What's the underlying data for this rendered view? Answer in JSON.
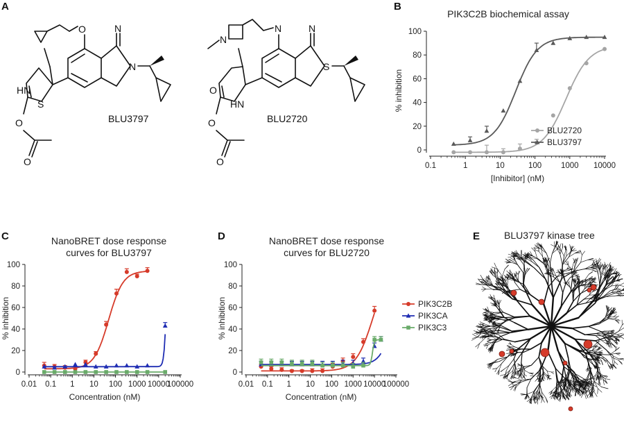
{
  "panels": {
    "a": "A",
    "b": "B",
    "c": "C",
    "d": "D",
    "e": "E"
  },
  "molecules": {
    "left_name": "BLU3797",
    "right_name": "BLU2720",
    "atoms": [
      "O",
      "N",
      "N",
      "S",
      "HN",
      "O",
      "O",
      "N",
      "N",
      "N",
      "S",
      "HN",
      "O",
      "O",
      "O"
    ]
  },
  "kinase_tree": {
    "title": "BLU3797 kinase tree",
    "colors": {
      "branch": "#111111",
      "hit": "#d63b2a"
    }
  },
  "chart_data": [
    {
      "id": "B",
      "type": "scatter",
      "title": "PIK3C2B biochemical assay",
      "xlabel": "[Inhibitor] (nM)",
      "ylabel": "% inhibition",
      "xscale": "log",
      "xlim": [
        0.1,
        10000
      ],
      "ylim": [
        0,
        100
      ],
      "xticks": [
        "0.1",
        "1",
        "10",
        "100",
        "1000",
        "10000"
      ],
      "yticks": [
        "0",
        "20",
        "40",
        "60",
        "80",
        "100"
      ],
      "legend": "bottom-right",
      "series": [
        {
          "name": "BLU2720",
          "color": "#a5a5a5",
          "marker": "circle",
          "x": [
            0.46,
            1.37,
            4.1,
            12.3,
            37,
            111,
            333,
            1000,
            3000,
            10000
          ],
          "y": [
            -2,
            -2,
            -2,
            -2,
            1,
            6,
            29,
            52,
            73,
            85
          ],
          "err": [
            0,
            0,
            6,
            3,
            4,
            3,
            0,
            0,
            0,
            0
          ],
          "fit": {
            "bottom": -2,
            "top": 88,
            "ec50": 780,
            "hill": 1.3
          }
        },
        {
          "name": "BLU3797",
          "color": "#595959",
          "marker": "triangle",
          "x": [
            0.46,
            1.37,
            4.1,
            12.3,
            37,
            111,
            333,
            1000,
            3000,
            10000
          ],
          "y": [
            5,
            8,
            16,
            33,
            58,
            84,
            90,
            94,
            95,
            95
          ],
          "err": [
            0,
            3,
            4,
            0,
            0,
            6,
            0,
            0,
            0,
            0
          ],
          "fit": {
            "bottom": 4,
            "top": 95,
            "ec50": 28,
            "hill": 1.4
          }
        }
      ]
    },
    {
      "id": "C",
      "type": "scatter",
      "title": "NanoBRET dose response curves for BLU3797",
      "title_lines": [
        "NanoBRET dose response",
        "curves for BLU3797"
      ],
      "xlabel": "Concentration (nM)",
      "ylabel": "% inhibition",
      "xscale": "log",
      "xlim": [
        0.01,
        100000
      ],
      "ylim": [
        0,
        100
      ],
      "xticks": [
        "0.01",
        "0.1",
        "1",
        "10",
        "100",
        "1000",
        "10000",
        "100000"
      ],
      "yticks": [
        "0",
        "20",
        "40",
        "60",
        "80",
        "100"
      ],
      "series": [
        {
          "name": "PIK3C2B",
          "color": "#d63b2a",
          "marker": "circle",
          "x": [
            0.05,
            0.15,
            0.46,
            1.37,
            4.1,
            12.3,
            37,
            111,
            333,
            1000,
            3000
          ],
          "y": [
            6,
            5,
            4,
            3,
            9,
            17,
            44,
            73,
            93,
            89,
            94
          ],
          "err": [
            3,
            2,
            2,
            2,
            2,
            2,
            3,
            4,
            3,
            2,
            3
          ],
          "fit": {
            "bottom": 3,
            "top": 94,
            "ec50": 48,
            "hill": 1.3
          }
        },
        {
          "name": "PIK3CA",
          "color": "#1f2db3",
          "marker": "triangle",
          "x": [
            0.05,
            0.15,
            0.46,
            1.37,
            4.1,
            12.3,
            37,
            111,
            333,
            1000,
            3000,
            20000
          ],
          "y": [
            5,
            4,
            5,
            7,
            7,
            5,
            5,
            6,
            6,
            5,
            6,
            43
          ],
          "err": [
            0,
            0,
            0,
            0,
            0,
            0,
            0,
            0,
            0,
            0,
            0,
            3
          ],
          "fit": {
            "bottom": 5,
            "top": 100,
            "ec50": 22000,
            "hill": 8
          }
        },
        {
          "name": "PIK3C3",
          "color": "#6aab6a",
          "marker": "square",
          "x": [
            0.05,
            0.15,
            0.46,
            1.37,
            4.1,
            12.3,
            37,
            111,
            333,
            1000,
            3000,
            20000
          ],
          "y": [
            0,
            0,
            0,
            0,
            0,
            0,
            0,
            0,
            0,
            0,
            0,
            0
          ],
          "err": [
            0,
            0,
            0,
            0,
            0,
            0,
            0,
            0,
            0,
            0,
            0,
            0
          ],
          "fit": {
            "bottom": 0,
            "top": 0,
            "ec50": 1000,
            "hill": 1
          }
        }
      ]
    },
    {
      "id": "D",
      "type": "scatter",
      "title": "NanoBRET dose response curves for BLU2720",
      "title_lines": [
        "NanoBRET dose response",
        "curves for BLU2720"
      ],
      "xlabel": "Concentration (nM)",
      "ylabel": "% inhibition",
      "xscale": "log",
      "xlim": [
        0.01,
        100000
      ],
      "ylim": [
        0,
        100
      ],
      "xticks": [
        "0.01",
        "0.1",
        "1",
        "10",
        "100",
        "1000",
        "10000",
        "100000"
      ],
      "yticks": [
        "0",
        "20",
        "40",
        "60",
        "80",
        "100"
      ],
      "legend": "right",
      "series": [
        {
          "name": "PIK3C2B",
          "color": "#d63b2a",
          "marker": "circle",
          "x": [
            0.05,
            0.15,
            0.46,
            1.37,
            4.1,
            12.3,
            37,
            111,
            333,
            1000,
            3000,
            10000
          ],
          "y": [
            5,
            3,
            2,
            1,
            1,
            1,
            1,
            5,
            10,
            14,
            28,
            57
          ],
          "err": [
            2,
            2,
            2,
            1,
            1,
            2,
            2,
            3,
            3,
            3,
            3,
            4
          ],
          "fit": {
            "bottom": 1,
            "top": 100,
            "ec50": 8500,
            "hill": 1.1
          }
        },
        {
          "name": "PIK3CA",
          "color": "#1f2db3",
          "marker": "triangle",
          "x": [
            0.05,
            0.15,
            0.46,
            1.37,
            4.1,
            12.3,
            37,
            111,
            333,
            1000,
            3000,
            10000,
            20000
          ],
          "y": [
            7,
            7,
            7,
            7,
            7,
            7,
            7,
            7,
            8,
            8,
            10,
            24,
            30
          ],
          "err": [
            3,
            3,
            3,
            3,
            3,
            3,
            3,
            3,
            3,
            3,
            3,
            3,
            3
          ],
          "fit": {
            "bottom": 7,
            "top": 100,
            "ec50": 80000,
            "hill": 1.5
          }
        },
        {
          "name": "PIK3C3",
          "color": "#6aab6a",
          "marker": "square",
          "x": [
            0.05,
            0.15,
            0.46,
            1.37,
            4.1,
            12.3,
            37,
            111,
            333,
            1000,
            3000,
            10000,
            20000
          ],
          "y": [
            9,
            9,
            9,
            8,
            8,
            8,
            6,
            6,
            6,
            5,
            6,
            30,
            30
          ],
          "err": [
            3,
            3,
            3,
            3,
            3,
            3,
            3,
            3,
            3,
            3,
            3,
            3,
            3
          ],
          "fit": {
            "bottom": 6,
            "top": 30,
            "ec50": 8000,
            "hill": 10
          }
        }
      ]
    }
  ]
}
